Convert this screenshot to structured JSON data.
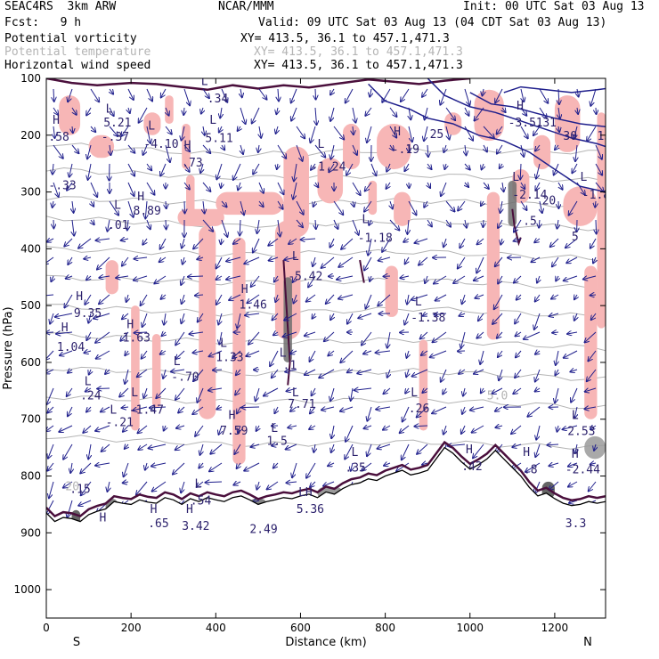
{
  "header": {
    "model": "SEAC4RS  3km ARW",
    "org": "NCAR/MMM",
    "init": "Init: 00 UTC Sat 03 Aug 13",
    "fcst": "Fcst:   9 h",
    "valid": "Valid: 09 UTC Sat 03 Aug 13 (04 CDT Sat 03 Aug 13)",
    "fields": [
      {
        "name": "Potential vorticity",
        "xy": "XY= 413.5, 36.1 to 457.1,471.3",
        "color": "#000000"
      },
      {
        "name": "Potential temperature",
        "xy": "XY= 413.5, 36.1 to 457.1,471.3",
        "color": "#b4b4b4"
      },
      {
        "name": "Horizontal wind speed",
        "xy": "XY= 413.5, 36.1 to 457.1,471.3",
        "color": "#000000"
      }
    ]
  },
  "chart_data": {
    "type": "cross-section",
    "xlabel": "Distance (km)",
    "ylabel": "Pressure (hPa)",
    "xlim": [
      0,
      1320
    ],
    "ylim": [
      1050,
      100
    ],
    "x_ticks": [
      0,
      200,
      400,
      600,
      800,
      1000,
      1200
    ],
    "y_ticks": [
      100,
      200,
      300,
      400,
      500,
      600,
      700,
      800,
      900,
      1000
    ],
    "endpoints": {
      "left": "S",
      "right": "N"
    },
    "colors": {
      "pv_fill": "#f7b6b6",
      "pv_contour": "#4a0f3c",
      "wind_contour": "#1f1f8c",
      "theta": "#b4b4b4",
      "terrain": "#000000",
      "arrows": "#1f1f8c"
    },
    "terrain": [
      [
        0,
        865
      ],
      [
        20,
        880
      ],
      [
        40,
        873
      ],
      [
        60,
        875
      ],
      [
        80,
        880
      ],
      [
        100,
        868
      ],
      [
        120,
        862
      ],
      [
        140,
        858
      ],
      [
        160,
        845
      ],
      [
        180,
        848
      ],
      [
        200,
        850
      ],
      [
        220,
        842
      ],
      [
        240,
        846
      ],
      [
        260,
        848
      ],
      [
        280,
        838
      ],
      [
        300,
        842
      ],
      [
        320,
        850
      ],
      [
        340,
        840
      ],
      [
        360,
        845
      ],
      [
        380,
        838
      ],
      [
        400,
        842
      ],
      [
        420,
        845
      ],
      [
        440,
        838
      ],
      [
        460,
        835
      ],
      [
        480,
        842
      ],
      [
        500,
        850
      ],
      [
        520,
        845
      ],
      [
        540,
        842
      ],
      [
        560,
        838
      ],
      [
        580,
        840
      ],
      [
        600,
        835
      ],
      [
        620,
        832
      ],
      [
        640,
        838
      ],
      [
        660,
        828
      ],
      [
        680,
        832
      ],
      [
        700,
        822
      ],
      [
        720,
        815
      ],
      [
        740,
        812
      ],
      [
        760,
        805
      ],
      [
        780,
        808
      ],
      [
        800,
        800
      ],
      [
        820,
        795
      ],
      [
        840,
        790
      ],
      [
        860,
        798
      ],
      [
        880,
        795
      ],
      [
        900,
        790
      ],
      [
        920,
        770
      ],
      [
        940,
        750
      ],
      [
        960,
        760
      ],
      [
        980,
        775
      ],
      [
        1000,
        788
      ],
      [
        1020,
        780
      ],
      [
        1040,
        770
      ],
      [
        1060,
        755
      ],
      [
        1080,
        770
      ],
      [
        1100,
        785
      ],
      [
        1120,
        800
      ],
      [
        1140,
        820
      ],
      [
        1160,
        835
      ],
      [
        1180,
        830
      ],
      [
        1200,
        840
      ],
      [
        1220,
        848
      ],
      [
        1240,
        852
      ],
      [
        1260,
        850
      ],
      [
        1280,
        845
      ],
      [
        1300,
        848
      ],
      [
        1320,
        845
      ]
    ],
    "theta_levels": [
      [
        215,
        235,
        225,
        230
      ],
      [
        260,
        275,
        270,
        280
      ],
      [
        310,
        320,
        315,
        325
      ],
      [
        345,
        360,
        350,
        365
      ],
      [
        400,
        410,
        405,
        418
      ],
      [
        450,
        460,
        455,
        470
      ],
      [
        500,
        515,
        505,
        520
      ],
      [
        550,
        565,
        560,
        575
      ],
      [
        610,
        620,
        615,
        630
      ],
      [
        660,
        670,
        665,
        680
      ],
      [
        730,
        745,
        740,
        750
      ]
    ],
    "pv_patches": [
      [
        30,
        130,
        80,
        200
      ],
      [
        100,
        200,
        160,
        240
      ],
      [
        230,
        160,
        270,
        200
      ],
      [
        280,
        130,
        300,
        180
      ],
      [
        320,
        180,
        340,
        260
      ],
      [
        330,
        270,
        350,
        360
      ],
      [
        310,
        330,
        420,
        360
      ],
      [
        400,
        300,
        560,
        340
      ],
      [
        360,
        360,
        400,
        700
      ],
      [
        440,
        380,
        470,
        780
      ],
      [
        540,
        350,
        600,
        560
      ],
      [
        560,
        220,
        620,
        380
      ],
      [
        640,
        240,
        700,
        320
      ],
      [
        700,
        180,
        740,
        260
      ],
      [
        760,
        280,
        780,
        340
      ],
      [
        780,
        180,
        860,
        260
      ],
      [
        800,
        430,
        830,
        520
      ],
      [
        820,
        300,
        860,
        360
      ],
      [
        880,
        560,
        900,
        720
      ],
      [
        940,
        160,
        980,
        200
      ],
      [
        1010,
        120,
        1080,
        210
      ],
      [
        1040,
        300,
        1070,
        560
      ],
      [
        1100,
        260,
        1140,
        320
      ],
      [
        1150,
        200,
        1190,
        260
      ],
      [
        1200,
        130,
        1260,
        230
      ],
      [
        1220,
        290,
        1300,
        360
      ],
      [
        1270,
        430,
        1300,
        700
      ],
      [
        1300,
        160,
        1320,
        540
      ],
      [
        140,
        420,
        170,
        480
      ],
      [
        200,
        500,
        220,
        720
      ],
      [
        250,
        550,
        270,
        680
      ]
    ],
    "gray_patches": [
      [
        560,
        450,
        580,
        600,
        "#6e6e6e"
      ],
      [
        1090,
        280,
        1110,
        360,
        "#6e6e6e"
      ],
      [
        1270,
        730,
        1320,
        770,
        "#9a9a9a"
      ],
      [
        1170,
        810,
        1200,
        840,
        "#4a4a4a"
      ],
      [
        60,
        860,
        80,
        890,
        "#4a4a4a"
      ],
      [
        140,
        840,
        170,
        870,
        "#6e6e6e"
      ],
      [
        640,
        820,
        700,
        840,
        "#8a8a8a"
      ],
      [
        480,
        840,
        520,
        860,
        "#6e6e6e"
      ]
    ],
    "labels": [
      {
        "t": "L",
        "x": 365,
        "y": 112
      },
      {
        "t": ".34",
        "x": 380,
        "y": 142
      },
      {
        "t": "H",
        "x": 15,
        "y": 180
      },
      {
        "t": ".58",
        "x": 5,
        "y": 210
      },
      {
        "t": "L",
        "x": 140,
        "y": 160
      },
      {
        "t": "5.21",
        "x": 135,
        "y": 185
      },
      {
        "t": "-.37",
        "x": 130,
        "y": 210
      },
      {
        "t": "L",
        "x": 240,
        "y": 190
      },
      {
        "t": "-4.10",
        "x": 230,
        "y": 222
      },
      {
        "t": "L",
        "x": 385,
        "y": 180
      },
      {
        "t": "5.11",
        "x": 375,
        "y": 212
      },
      {
        "t": "H",
        "x": 325,
        "y": 225
      },
      {
        "t": ".73",
        "x": 320,
        "y": 255
      },
      {
        "t": "L",
        "x": 640,
        "y": 222
      },
      {
        "t": "-1.24",
        "x": 625,
        "y": 262
      },
      {
        "t": "H",
        "x": 820,
        "y": 200
      },
      {
        "t": "-.19",
        "x": 815,
        "y": 232
      },
      {
        "t": "H",
        "x": 1110,
        "y": 155
      },
      {
        "t": "-3.51",
        "x": 1090,
        "y": 185
      },
      {
        "t": ".31",
        "x": 1155,
        "y": 185
      },
      {
        "t": "25",
        "x": 905,
        "y": 205
      },
      {
        "t": "30",
        "x": 1220,
        "y": 208
      },
      {
        "t": "15",
        "x": 1300,
        "y": 208
      },
      {
        "t": "H",
        "x": 215,
        "y": 315
      },
      {
        "t": "8.89",
        "x": 205,
        "y": 340
      },
      {
        "t": "L",
        "x": 160,
        "y": 330
      },
      {
        "t": ".01",
        "x": 145,
        "y": 365
      },
      {
        "t": "-.33",
        "x": 5,
        "y": 295
      },
      {
        "t": "L",
        "x": 745,
        "y": 355
      },
      {
        "t": "-1.18",
        "x": 735,
        "y": 388
      },
      {
        "t": "L",
        "x": 580,
        "y": 420
      },
      {
        "t": "-5.42",
        "x": 570,
        "y": 455
      },
      {
        "t": "H",
        "x": 70,
        "y": 490
      },
      {
        "t": "9.35",
        "x": 65,
        "y": 520
      },
      {
        "t": "H",
        "x": 35,
        "y": 545
      },
      {
        "t": "1.04",
        "x": 25,
        "y": 580
      },
      {
        "t": "H",
        "x": 190,
        "y": 540
      },
      {
        "t": "1.63",
        "x": 180,
        "y": 563
      },
      {
        "t": "H",
        "x": 460,
        "y": 478
      },
      {
        "t": "1.46",
        "x": 455,
        "y": 505
      },
      {
        "t": "L",
        "x": 870,
        "y": 500
      },
      {
        "t": "-1.38",
        "x": 860,
        "y": 528
      },
      {
        "t": "L",
        "x": 410,
        "y": 573
      },
      {
        "t": "1.33",
        "x": 400,
        "y": 598
      },
      {
        "t": "L",
        "x": 300,
        "y": 605
      },
      {
        "t": "-.70",
        "x": 295,
        "y": 632
      },
      {
        "t": "L",
        "x": 550,
        "y": 590
      },
      {
        "t": ".1",
        "x": 558,
        "y": 612
      },
      {
        "t": "L",
        "x": 90,
        "y": 640
      },
      {
        "t": ".24",
        "x": 80,
        "y": 665
      },
      {
        "t": "L",
        "x": 200,
        "y": 660
      },
      {
        "t": "-1.47",
        "x": 195,
        "y": 690
      },
      {
        "t": "L",
        "x": 150,
        "y": 690
      },
      {
        "t": "-.21",
        "x": 140,
        "y": 712
      },
      {
        "t": "L",
        "x": 580,
        "y": 660
      },
      {
        "t": "7.71",
        "x": 570,
        "y": 680
      },
      {
        "t": "L",
        "x": 860,
        "y": 660
      },
      {
        "t": ".26",
        "x": 855,
        "y": 688
      },
      {
        "t": "H",
        "x": 430,
        "y": 700
      },
      {
        "t": "7.59",
        "x": 410,
        "y": 727
      },
      {
        "t": "L",
        "x": 530,
        "y": 722
      },
      {
        "t": "1.5",
        "x": 520,
        "y": 745
      },
      {
        "t": "L",
        "x": 720,
        "y": 765
      },
      {
        "t": ".35",
        "x": 705,
        "y": 792
      },
      {
        "t": "H",
        "x": 990,
        "y": 760
      },
      {
        "t": ".42",
        "x": 980,
        "y": 790
      },
      {
        "t": "L",
        "x": 1240,
        "y": 700
      },
      {
        "t": "2.53",
        "x": 1230,
        "y": 728
      },
      {
        "t": "H",
        "x": 1240,
        "y": 768
      },
      {
        "t": "-2.44",
        "x": 1225,
        "y": 795
      },
      {
        "t": "L",
        "x": 1100,
        "y": 280
      },
      {
        "t": "-2.14",
        "x": 1100,
        "y": 312
      },
      {
        "t": "20",
        "x": 1170,
        "y": 322
      },
      {
        "t": "L",
        "x": 1260,
        "y": 280
      },
      {
        "t": "-1.8",
        "x": 1265,
        "y": 312
      },
      {
        "t": ".5",
        "x": 1125,
        "y": 358
      },
      {
        "t": "5",
        "x": 1240,
        "y": 385
      },
      {
        "t": "L",
        "x": 350,
        "y": 820
      },
      {
        "t": ".54",
        "x": 340,
        "y": 850
      },
      {
        "t": "H",
        "x": 330,
        "y": 865
      },
      {
        "t": "3.42",
        "x": 320,
        "y": 895
      },
      {
        "t": "H",
        "x": 125,
        "y": 880
      },
      {
        "t": "H",
        "x": 245,
        "y": 865
      },
      {
        "t": ".65",
        "x": 240,
        "y": 890
      },
      {
        "t": ".15",
        "x": 55,
        "y": 830
      },
      {
        "t": "2.49",
        "x": 480,
        "y": 900
      },
      {
        "t": "LH",
        "x": 595,
        "y": 835
      },
      {
        "t": "5.36",
        "x": 590,
        "y": 865
      },
      {
        "t": "H",
        "x": 1125,
        "y": 765
      },
      {
        "t": "-.8",
        "x": 1110,
        "y": 795
      },
      {
        "t": "3.3",
        "x": 1225,
        "y": 890
      }
    ],
    "gray_labels": [
      {
        "t": "5.0",
        "x": 1040,
        "y": 665
      },
      {
        "t": "20",
        "x": 45,
        "y": 825
      }
    ]
  }
}
